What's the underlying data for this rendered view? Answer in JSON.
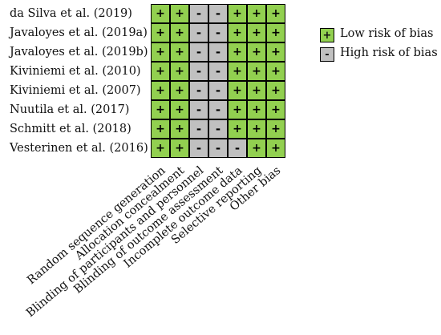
{
  "studies": [
    "da Silva et al. (2019)",
    "Javaloyes et al. (2019a)",
    "Javaloyes et al. (2019b)",
    "Kiviniemi et al. (2010)",
    "Kiviniemi et al. (2007)",
    "Nuutila et al. (2017)",
    "Schmitt et al. (2018)",
    "Vesterinen et al. (2016)"
  ],
  "domains": [
    "Random sequence generation",
    "Allocation concealment",
    "Blinding of participants and personnel",
    "Blinding of outcome assessment",
    "Incomplete outcome data",
    "Selective reporting",
    "Other bias"
  ],
  "ratings": [
    [
      "low",
      "low",
      "high",
      "high",
      "low",
      "low",
      "low"
    ],
    [
      "low",
      "low",
      "high",
      "high",
      "low",
      "low",
      "low"
    ],
    [
      "low",
      "low",
      "high",
      "high",
      "low",
      "low",
      "low"
    ],
    [
      "low",
      "low",
      "high",
      "high",
      "low",
      "low",
      "low"
    ],
    [
      "low",
      "low",
      "high",
      "high",
      "low",
      "low",
      "low"
    ],
    [
      "low",
      "low",
      "high",
      "high",
      "low",
      "low",
      "low"
    ],
    [
      "low",
      "low",
      "high",
      "high",
      "low",
      "low",
      "low"
    ],
    [
      "low",
      "low",
      "high",
      "high",
      "high",
      "low",
      "low"
    ]
  ],
  "symbols": {
    "low": "+",
    "high": "-"
  },
  "colors": {
    "low": "#92d050",
    "high": "#c0c0c0"
  },
  "legend": [
    {
      "key": "low",
      "symbol": "+",
      "label": "Low risk of bias"
    },
    {
      "key": "high",
      "symbol": "-",
      "label": "High risk of bias"
    }
  ]
}
